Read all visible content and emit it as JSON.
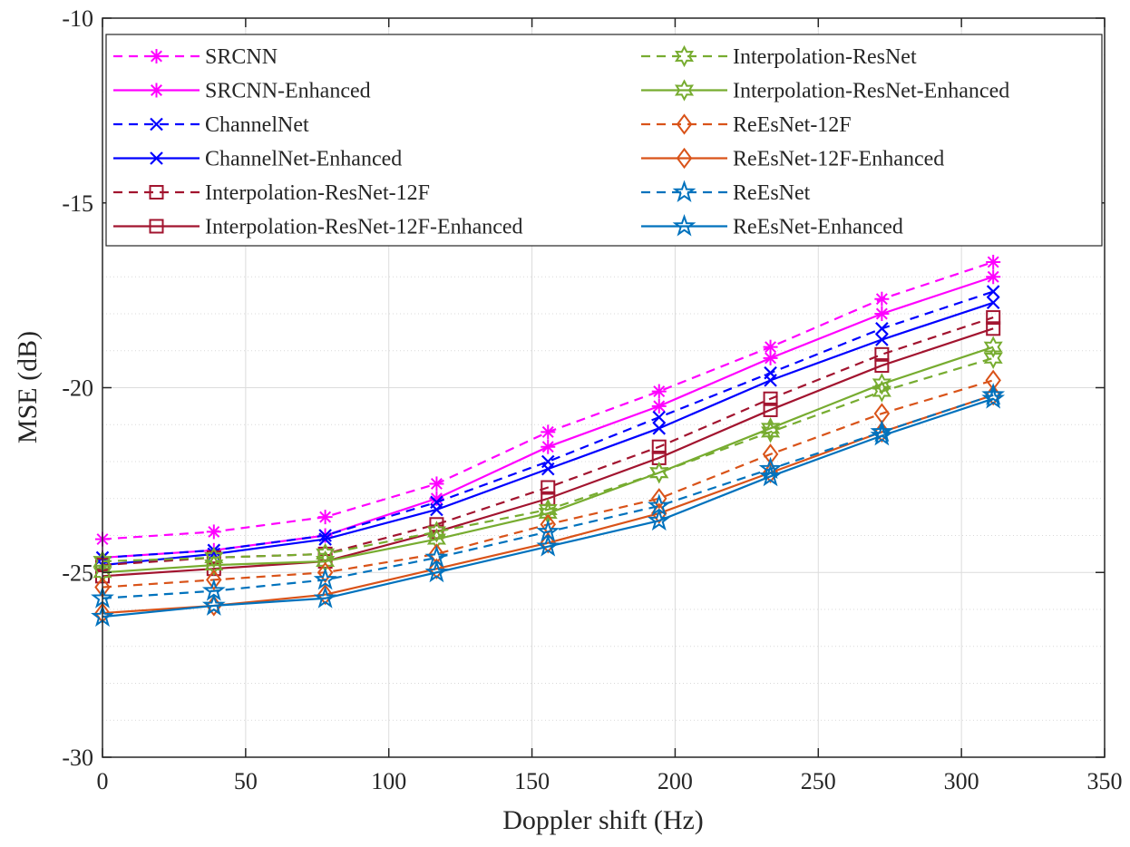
{
  "chart_data": {
    "type": "line",
    "title": "",
    "xlabel": "Doppler shift (Hz)",
    "ylabel": "MSE (dB)",
    "xlim": [
      0,
      350
    ],
    "ylim": [
      -30,
      -10
    ],
    "xticks": [
      0,
      50,
      100,
      150,
      200,
      250,
      300,
      350
    ],
    "yticks": [
      -30,
      -25,
      -20,
      -15,
      -10
    ],
    "xtick_labels": [
      "0",
      "50",
      "100",
      "150",
      "200",
      "250",
      "300",
      "350"
    ],
    "ytick_labels": [
      "-30",
      "-25",
      "-20",
      "-15",
      "-10"
    ],
    "grid": true,
    "minor_grid_y": true,
    "legend_position": "top",
    "legend_columns": 2,
    "x": [
      0,
      38.9,
      77.8,
      116.7,
      155.6,
      194.4,
      233.3,
      272.2,
      311.1
    ],
    "series": [
      {
        "name": "SRCNN",
        "color": "#ff00ff",
        "dash": "dashed",
        "marker": "asterisk",
        "values": [
          -24.1,
          -23.9,
          -23.5,
          -22.6,
          -21.2,
          -20.1,
          -18.9,
          -17.6,
          -16.6
        ]
      },
      {
        "name": "SRCNN-Enhanced",
        "color": "#ff00ff",
        "dash": "solid",
        "marker": "asterisk",
        "values": [
          -24.6,
          -24.4,
          -24.0,
          -23.0,
          -21.6,
          -20.5,
          -19.2,
          -18.0,
          -17.0
        ]
      },
      {
        "name": "ChannelNet",
        "color": "#0000ff",
        "dash": "dashed",
        "marker": "x",
        "values": [
          -24.6,
          -24.4,
          -24.0,
          -23.1,
          -22.0,
          -20.8,
          -19.6,
          -18.4,
          -17.4
        ]
      },
      {
        "name": "ChannelNet-Enhanced",
        "color": "#0000ff",
        "dash": "solid",
        "marker": "x",
        "values": [
          -24.8,
          -24.5,
          -24.1,
          -23.3,
          -22.2,
          -21.1,
          -19.8,
          -18.7,
          -17.7
        ]
      },
      {
        "name": "Interpolation-ResNet-12F",
        "color": "#a2142f",
        "dash": "dashed",
        "marker": "square",
        "values": [
          -24.8,
          -24.6,
          -24.5,
          -23.7,
          -22.7,
          -21.6,
          -20.3,
          -19.1,
          -18.1
        ]
      },
      {
        "name": "Interpolation-ResNet-12F-Enhanced",
        "color": "#a2142f",
        "dash": "solid",
        "marker": "square",
        "values": [
          -25.1,
          -24.9,
          -24.7,
          -23.9,
          -23.0,
          -21.9,
          -20.6,
          -19.4,
          -18.4
        ]
      },
      {
        "name": "Interpolation-ResNet",
        "color": "#77ac30",
        "dash": "dashed",
        "marker": "hexagram",
        "values": [
          -24.7,
          -24.6,
          -24.5,
          -23.9,
          -23.3,
          -22.3,
          -21.2,
          -20.1,
          -19.2
        ]
      },
      {
        "name": "Interpolation-ResNet-Enhanced",
        "color": "#77ac30",
        "dash": "solid",
        "marker": "hexagram",
        "values": [
          -25.0,
          -24.8,
          -24.7,
          -24.1,
          -23.4,
          -22.3,
          -21.1,
          -19.9,
          -18.9
        ]
      },
      {
        "name": "ReEsNet-12F",
        "color": "#d95319",
        "dash": "dashed",
        "marker": "diamond",
        "values": [
          -25.4,
          -25.2,
          -25.0,
          -24.5,
          -23.7,
          -23.0,
          -21.8,
          -20.7,
          -19.8
        ]
      },
      {
        "name": "ReEsNet-12F-Enhanced",
        "color": "#d95319",
        "dash": "solid",
        "marker": "diamond",
        "values": [
          -26.1,
          -25.9,
          -25.6,
          -24.9,
          -24.2,
          -23.4,
          -22.3,
          -21.2,
          -20.2
        ]
      },
      {
        "name": "ReEsNet",
        "color": "#0072bd",
        "dash": "dashed",
        "marker": "pentagram",
        "values": [
          -25.7,
          -25.5,
          -25.2,
          -24.6,
          -23.9,
          -23.2,
          -22.2,
          -21.2,
          -20.2
        ]
      },
      {
        "name": "ReEsNet-Enhanced",
        "color": "#0072bd",
        "dash": "solid",
        "marker": "pentagram",
        "values": [
          -26.2,
          -25.9,
          -25.7,
          -25.0,
          -24.3,
          -23.6,
          -22.4,
          -21.3,
          -20.3
        ]
      }
    ]
  }
}
